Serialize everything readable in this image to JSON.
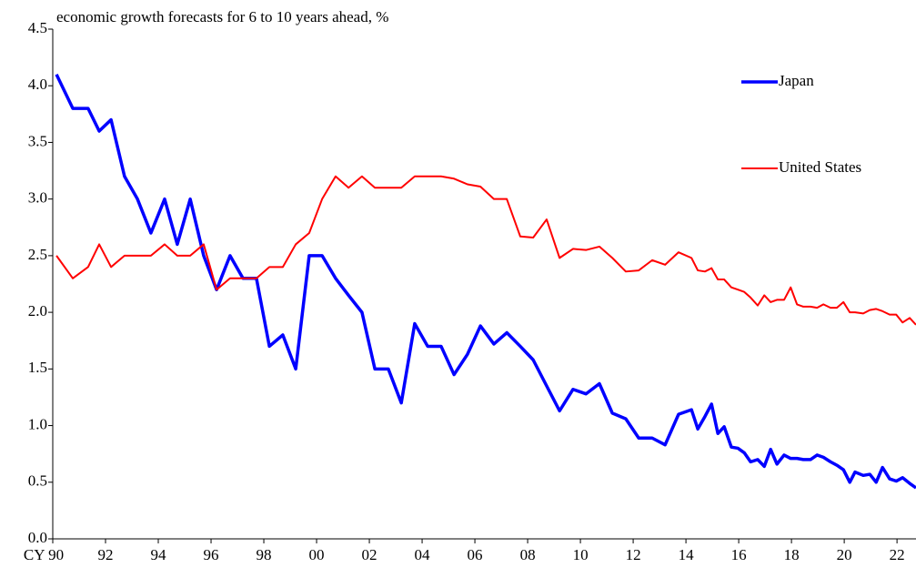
{
  "chart_data": {
    "type": "line",
    "title": "economic growth forecasts for 6 to 10 years ahead, %",
    "x": [
      1990.14,
      1990.76,
      1991.34,
      1991.76,
      1992.21,
      1992.72,
      1993.21,
      1993.72,
      1994.24,
      1994.72,
      1995.21,
      1995.72,
      1996.21,
      1996.72,
      1997.21,
      1997.72,
      1998.21,
      1998.72,
      1999.21,
      1999.72,
      2000.21,
      2000.72,
      2001.21,
      2001.72,
      2002.21,
      2002.72,
      2003.21,
      2003.72,
      2004.21,
      2004.72,
      2005.21,
      2005.72,
      2006.21,
      2006.72,
      2007.21,
      2007.72,
      2008.21,
      2008.72,
      2009.21,
      2009.72,
      2010.21,
      2010.72,
      2011.21,
      2011.72,
      2012.21,
      2012.72,
      2013.21,
      2013.72,
      2014.21,
      2014.45,
      2014.72,
      2014.97,
      2015.21,
      2015.45,
      2015.72,
      2015.97,
      2016.21,
      2016.45,
      2016.72,
      2016.97,
      2017.21,
      2017.45,
      2017.72,
      2017.97,
      2018.21,
      2018.45,
      2018.72,
      2018.97,
      2019.21,
      2019.48,
      2019.72,
      2019.97,
      2020.21,
      2020.41,
      2020.72,
      2020.97,
      2021.21,
      2021.45,
      2021.72,
      2021.97,
      2022.21,
      2022.48,
      2022.72
    ],
    "series": [
      {
        "name": "Japan",
        "color": "#0000ff",
        "width": 3.5,
        "values": [
          4.1,
          3.8,
          3.8,
          3.6,
          3.7,
          3.2,
          3.0,
          2.7,
          3.0,
          2.6,
          3.0,
          2.5,
          2.2,
          2.5,
          2.3,
          2.3,
          1.7,
          1.8,
          1.5,
          2.5,
          2.5,
          2.3,
          2.15,
          2.0,
          1.5,
          1.5,
          1.2,
          1.9,
          1.7,
          1.7,
          1.45,
          1.63,
          1.88,
          1.72,
          1.82,
          1.7,
          1.58,
          1.35,
          1.13,
          1.32,
          1.28,
          1.37,
          1.11,
          1.06,
          0.89,
          0.89,
          0.83,
          1.1,
          1.14,
          0.97,
          1.08,
          1.19,
          0.93,
          0.99,
          0.81,
          0.8,
          0.76,
          0.68,
          0.7,
          0.64,
          0.79,
          0.66,
          0.74,
          0.71,
          0.71,
          0.7,
          0.7,
          0.74,
          0.72,
          0.68,
          0.65,
          0.61,
          0.5,
          0.59,
          0.56,
          0.57,
          0.5,
          0.63,
          0.53,
          0.51,
          0.54,
          0.49,
          0.45
        ]
      },
      {
        "name": "United States",
        "color": "#ff0000",
        "width": 2,
        "values": [
          2.5,
          2.3,
          2.4,
          2.6,
          2.4,
          2.5,
          2.5,
          2.5,
          2.6,
          2.5,
          2.5,
          2.6,
          2.2,
          2.3,
          2.3,
          2.3,
          2.4,
          2.4,
          2.6,
          2.7,
          3.0,
          3.2,
          3.1,
          3.2,
          3.1,
          3.1,
          3.1,
          3.2,
          3.2,
          3.2,
          3.18,
          3.13,
          3.11,
          3.0,
          3.0,
          2.67,
          2.66,
          2.82,
          2.48,
          2.56,
          2.55,
          2.58,
          2.48,
          2.36,
          2.37,
          2.46,
          2.42,
          2.53,
          2.48,
          2.37,
          2.36,
          2.39,
          2.29,
          2.29,
          2.22,
          2.2,
          2.18,
          2.13,
          2.06,
          2.15,
          2.09,
          2.11,
          2.11,
          2.22,
          2.07,
          2.05,
          2.05,
          2.04,
          2.07,
          2.04,
          2.04,
          2.09,
          2.0,
          2.0,
          1.99,
          2.02,
          2.03,
          2.01,
          1.98,
          1.98,
          1.91,
          1.95,
          1.89
        ]
      }
    ],
    "xlim": [
      1990,
      2022.72
    ],
    "xticks": [
      {
        "value": 1990,
        "label": "CY 90"
      },
      {
        "value": 1992,
        "label": "92"
      },
      {
        "value": 1994,
        "label": "94"
      },
      {
        "value": 1996,
        "label": "96"
      },
      {
        "value": 1998,
        "label": "98"
      },
      {
        "value": 2000,
        "label": "00"
      },
      {
        "value": 2002,
        "label": "02"
      },
      {
        "value": 2004,
        "label": "04"
      },
      {
        "value": 2006,
        "label": "06"
      },
      {
        "value": 2008,
        "label": "08"
      },
      {
        "value": 2010,
        "label": "10"
      },
      {
        "value": 2012,
        "label": "12"
      },
      {
        "value": 2014,
        "label": "14"
      },
      {
        "value": 2016,
        "label": "16"
      },
      {
        "value": 2018,
        "label": "18"
      },
      {
        "value": 2020,
        "label": "20"
      },
      {
        "value": 2022,
        "label": "22"
      }
    ],
    "ylim": [
      0,
      4.5
    ],
    "yticks": [
      {
        "value": 0,
        "label": "0.0"
      },
      0.5,
      {
        "value": 1,
        "label": "1.0"
      },
      1.5,
      {
        "value": 2,
        "label": "2.0"
      },
      2.5,
      {
        "value": 3,
        "label": "3.0"
      },
      3.5,
      {
        "value": 4,
        "label": "4.0"
      },
      4.5
    ],
    "grid": false,
    "legend": "upper right"
  }
}
